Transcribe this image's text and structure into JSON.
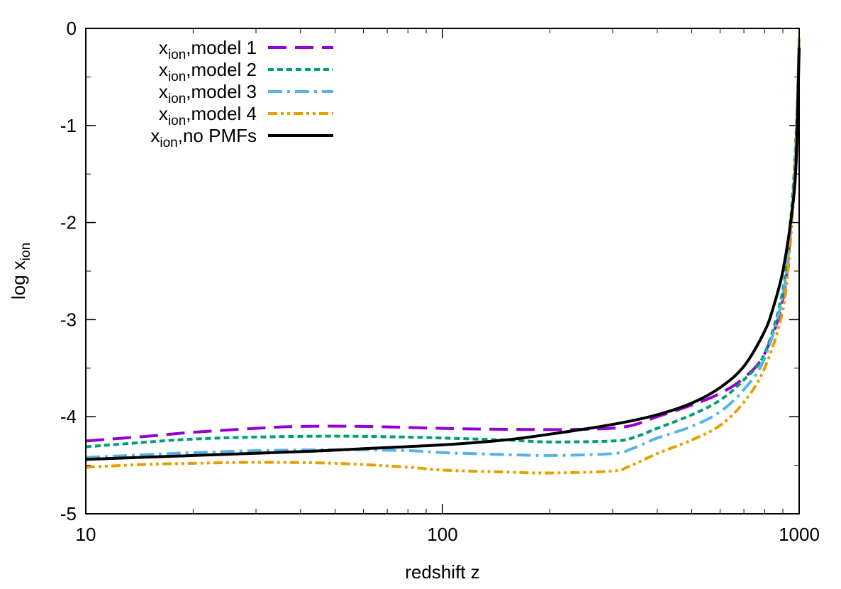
{
  "chart_data": {
    "type": "line",
    "xlabel": "redshift z",
    "ylabel": "log x",
    "ylabel_subscript": "ion",
    "xscale": "log",
    "xlim": [
      10,
      1000
    ],
    "ylim": [
      -5,
      0
    ],
    "grid": false,
    "legend_placement": "top-left",
    "xticks": [
      {
        "value": 10,
        "label": "10"
      },
      {
        "value": 100,
        "label": "100"
      },
      {
        "value": 1000,
        "label": "1000"
      }
    ],
    "yticks": [
      {
        "value": 0,
        "label": "0"
      },
      {
        "value": -1,
        "label": "-1"
      },
      {
        "value": -2,
        "label": "-2"
      },
      {
        "value": -3,
        "label": "-3"
      },
      {
        "value": -4,
        "label": "-4"
      },
      {
        "value": -5,
        "label": "-5"
      }
    ],
    "series": [
      {
        "name": "x",
        "name_subscript": "ion",
        "name_suffix": ",model 1",
        "color": "#9400d3",
        "dash": "long-dash",
        "points": [
          [
            10,
            -4.25
          ],
          [
            15,
            -4.2
          ],
          [
            20,
            -4.16
          ],
          [
            30,
            -4.12
          ],
          [
            40,
            -4.1
          ],
          [
            60,
            -4.1
          ],
          [
            100,
            -4.12
          ],
          [
            150,
            -4.13
          ],
          [
            250,
            -4.13
          ],
          [
            330,
            -4.1
          ],
          [
            400,
            -4.0
          ],
          [
            500,
            -3.88
          ],
          [
            600,
            -3.76
          ],
          [
            700,
            -3.6
          ],
          [
            800,
            -3.35
          ],
          [
            900,
            -2.8
          ],
          [
            950,
            -2.0
          ],
          [
            980,
            -1.2
          ],
          [
            1000,
            -0.2
          ]
        ]
      },
      {
        "name": "x",
        "name_subscript": "ion",
        "name_suffix": ",model 2",
        "color": "#009e73",
        "dash": "short-dash",
        "points": [
          [
            10,
            -4.31
          ],
          [
            15,
            -4.26
          ],
          [
            20,
            -4.23
          ],
          [
            30,
            -4.21
          ],
          [
            50,
            -4.2
          ],
          [
            80,
            -4.21
          ],
          [
            100,
            -4.22
          ],
          [
            150,
            -4.24
          ],
          [
            200,
            -4.26
          ],
          [
            300,
            -4.25
          ],
          [
            340,
            -4.22
          ],
          [
            400,
            -4.12
          ],
          [
            500,
            -3.98
          ],
          [
            600,
            -3.83
          ],
          [
            700,
            -3.62
          ],
          [
            800,
            -3.35
          ],
          [
            900,
            -2.7
          ],
          [
            950,
            -1.9
          ],
          [
            980,
            -1.1
          ],
          [
            1000,
            -0.1
          ]
        ]
      },
      {
        "name": "x",
        "name_subscript": "ion",
        "name_suffix": ",model 3",
        "color": "#56b4e9",
        "dash": "dash-dot",
        "points": [
          [
            10,
            -4.42
          ],
          [
            15,
            -4.39
          ],
          [
            20,
            -4.37
          ],
          [
            30,
            -4.35
          ],
          [
            50,
            -4.34
          ],
          [
            80,
            -4.35
          ],
          [
            100,
            -4.37
          ],
          [
            150,
            -4.39
          ],
          [
            200,
            -4.4
          ],
          [
            300,
            -4.38
          ],
          [
            340,
            -4.33
          ],
          [
            400,
            -4.22
          ],
          [
            500,
            -4.1
          ],
          [
            600,
            -3.95
          ],
          [
            700,
            -3.72
          ],
          [
            800,
            -3.4
          ],
          [
            900,
            -2.75
          ],
          [
            950,
            -2.0
          ],
          [
            980,
            -1.2
          ],
          [
            1000,
            -0.1
          ]
        ]
      },
      {
        "name": "x",
        "name_subscript": "ion",
        "name_suffix": ",model 4",
        "color": "#e69f00",
        "dash": "dash-dot-dot",
        "points": [
          [
            10,
            -4.52
          ],
          [
            15,
            -4.49
          ],
          [
            20,
            -4.48
          ],
          [
            30,
            -4.47
          ],
          [
            50,
            -4.48
          ],
          [
            80,
            -4.52
          ],
          [
            100,
            -4.55
          ],
          [
            150,
            -4.57
          ],
          [
            200,
            -4.58
          ],
          [
            300,
            -4.56
          ],
          [
            330,
            -4.52
          ],
          [
            400,
            -4.38
          ],
          [
            500,
            -4.24
          ],
          [
            600,
            -4.09
          ],
          [
            700,
            -3.85
          ],
          [
            800,
            -3.5
          ],
          [
            900,
            -2.9
          ],
          [
            950,
            -2.1
          ],
          [
            980,
            -1.2
          ],
          [
            1000,
            -0.1
          ]
        ]
      },
      {
        "name": "x",
        "name_subscript": "ion",
        "name_suffix": ",no PMFs",
        "color": "#000000",
        "dash": "solid",
        "points": [
          [
            10,
            -4.44
          ],
          [
            20,
            -4.4
          ],
          [
            40,
            -4.36
          ],
          [
            60,
            -4.33
          ],
          [
            100,
            -4.29
          ],
          [
            150,
            -4.24
          ],
          [
            200,
            -4.18
          ],
          [
            300,
            -4.08
          ],
          [
            400,
            -3.98
          ],
          [
            500,
            -3.86
          ],
          [
            600,
            -3.7
          ],
          [
            700,
            -3.48
          ],
          [
            800,
            -3.12
          ],
          [
            850,
            -2.85
          ],
          [
            900,
            -2.5
          ],
          [
            950,
            -1.95
          ],
          [
            980,
            -1.4
          ],
          [
            1000,
            -0.2
          ]
        ]
      }
    ]
  }
}
